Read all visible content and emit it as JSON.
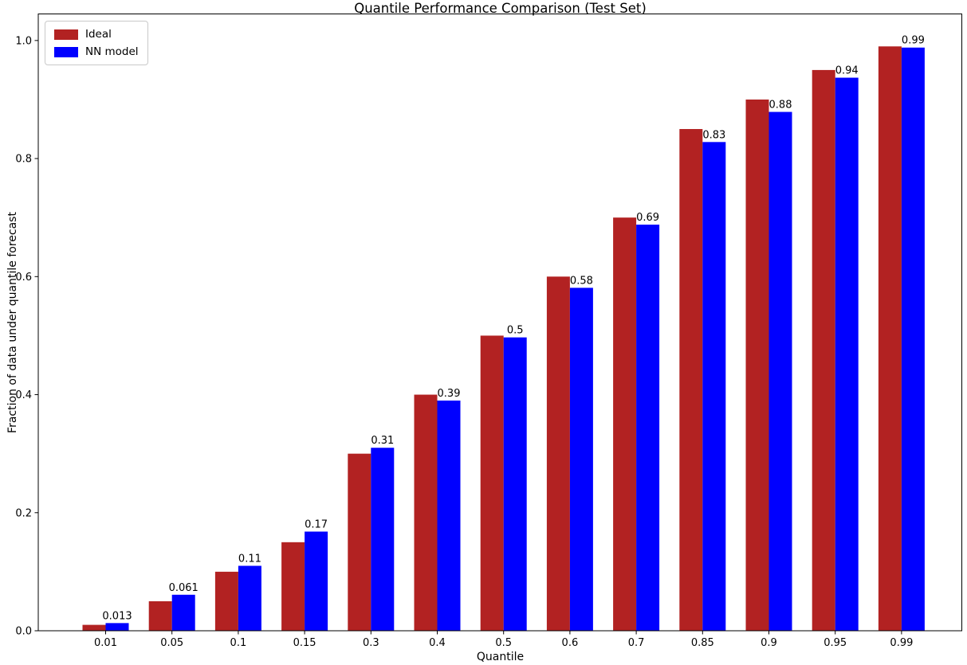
{
  "chart_data": {
    "type": "bar",
    "title": "Quantile Performance Comparison (Test Set)",
    "xlabel": "Quantile",
    "ylabel": "Fraction of data under quantile forecast",
    "categories": [
      "0.01",
      "0.05",
      "0.1",
      "0.15",
      "0.3",
      "0.4",
      "0.5",
      "0.6",
      "0.7",
      "0.85",
      "0.9",
      "0.95",
      "0.99"
    ],
    "yticks": [
      "0.0",
      "0.2",
      "0.4",
      "0.6",
      "0.8",
      "1.0"
    ],
    "ylim": [
      0,
      1.045
    ],
    "grid": false,
    "legend_position": "upper-left",
    "series": [
      {
        "name": "Ideal",
        "color": "#B22222",
        "values": [
          0.01,
          0.05,
          0.1,
          0.15,
          0.3,
          0.4,
          0.5,
          0.6,
          0.7,
          0.85,
          0.9,
          0.95,
          0.99
        ]
      },
      {
        "name": "NN model",
        "color": "#0000FF",
        "values": [
          0.013,
          0.061,
          0.11,
          0.168,
          0.31,
          0.39,
          0.497,
          0.581,
          0.688,
          0.828,
          0.879,
          0.937,
          0.988
        ],
        "bar_labels": [
          "0.013",
          "0.061",
          "0.11",
          "0.17",
          "0.31",
          "0.39",
          "0.5",
          "0.58",
          "0.69",
          "0.83",
          "0.88",
          "0.94",
          "0.99"
        ]
      }
    ]
  }
}
